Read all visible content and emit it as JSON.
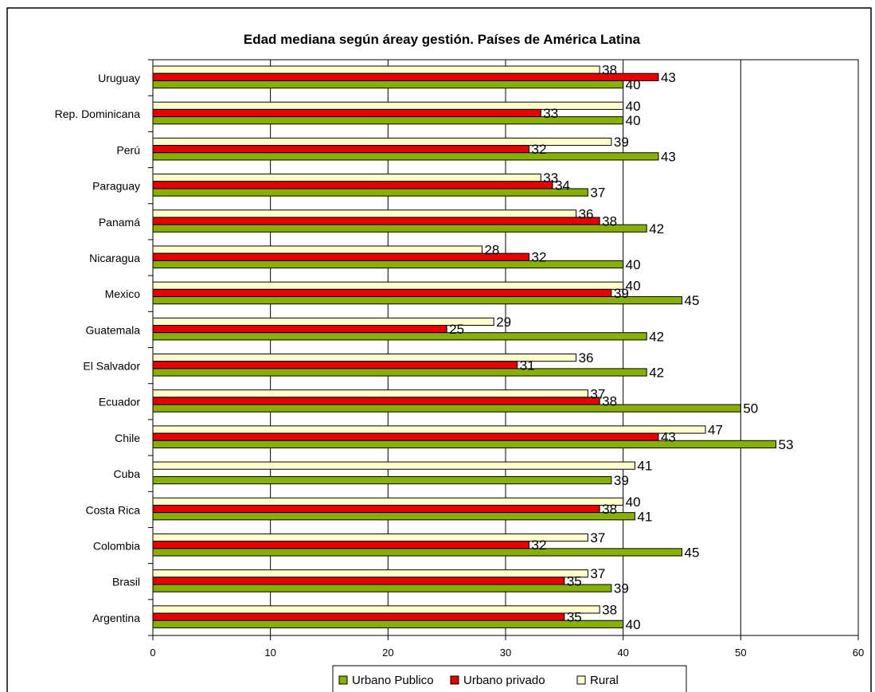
{
  "chart_data": {
    "type": "bar",
    "orientation": "horizontal",
    "title": "Edad mediana según área y gestión. Países de América Latina",
    "title_display": "Edad mediana según áreay gestión. Países de América Latina",
    "xlabel": "",
    "ylabel": "",
    "xlim": [
      0,
      60
    ],
    "xticks": [
      0,
      10,
      20,
      30,
      40,
      50,
      60
    ],
    "grid": "x-major-at-every-tick",
    "legend_position": "bottom",
    "categories": [
      "Uruguay",
      "Rep. Dominicana",
      "Perú",
      "Paraguay",
      "Panamá",
      "Nicaragua",
      "Mexico",
      "Guatemala",
      "El Salvador",
      "Ecuador",
      "Chile",
      "Cuba",
      "Costa Rica",
      "Colombia",
      "Brasil",
      "Argentina"
    ],
    "series": [
      {
        "name": "Urbano Publico",
        "color": "#88b000",
        "values": [
          40,
          40,
          43,
          37,
          42,
          40,
          45,
          42,
          42,
          50,
          53,
          39,
          41,
          45,
          39,
          40
        ]
      },
      {
        "name": "Urbano privado",
        "color": "#e80000",
        "values": [
          43,
          33,
          32,
          34,
          38,
          32,
          39,
          25,
          31,
          38,
          43,
          null,
          38,
          32,
          35,
          35
        ]
      },
      {
        "name": "Rural",
        "color": "#ffffcc",
        "values": [
          38,
          40,
          39,
          33,
          36,
          28,
          40,
          29,
          36,
          37,
          47,
          41,
          40,
          37,
          37,
          38
        ]
      }
    ]
  }
}
